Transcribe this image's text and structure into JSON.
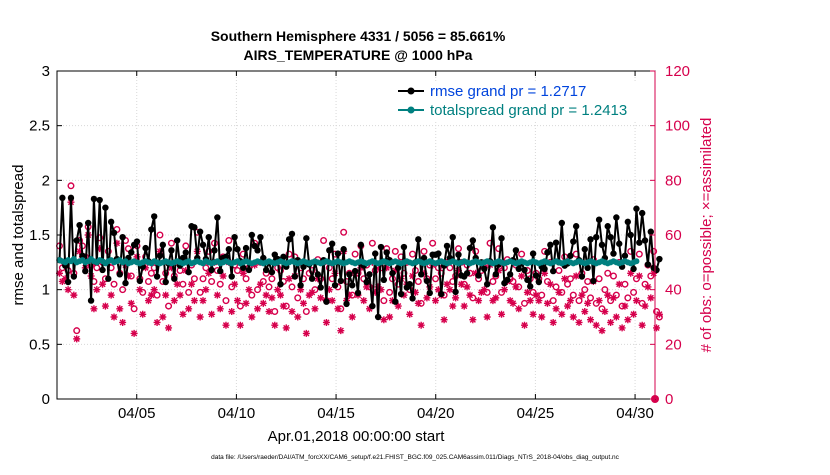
{
  "chart_data": {
    "type": "line",
    "title": "Southern Hemisphere 4331 / 5056 = 85.661%",
    "subtitle": "AIRS_TEMPERATURE @ 1000 hPa",
    "xlabel": "Apr.01,2018 00:00:00 start",
    "ylabel_left": "rmse and totalspread",
    "ylabel_right": "# of obs: o=possible; ×=assimilated",
    "footer": "data file: /Users/raeder/DAI/ATM_forcXX/CAM6_setup/f.e21.FHIST_BGC.f09_025.CAM6assim.011/Diags_NTrS_2018-04/obs_diag_output.nc",
    "x_range": [
      1.0,
      31.0
    ],
    "ylim_left": [
      0,
      3
    ],
    "ylim_right": [
      0,
      120
    ],
    "x_ticks": [
      5,
      10,
      15,
      20,
      25,
      30
    ],
    "x_tick_labels": [
      "04/05",
      "04/10",
      "04/15",
      "04/20",
      "04/25",
      "04/30"
    ],
    "y_left_ticks": [
      0,
      0.5,
      1,
      1.5,
      2,
      2.5,
      3
    ],
    "y_left_tick_labels": [
      "0",
      "0.5",
      "1",
      "1.5",
      "2",
      "2.5",
      "3"
    ],
    "y_right_ticks": [
      0,
      20,
      40,
      60,
      80,
      100,
      120
    ],
    "y_right_tick_labels": [
      "0",
      "20",
      "40",
      "60",
      "80",
      "100",
      "120"
    ],
    "legend_position": "top-right",
    "colors": {
      "rmse": "#000000",
      "spread": "#008080",
      "obs": "#d6004c"
    },
    "series": [
      {
        "name": "rmse",
        "label": "rmse grand pr = 1.2717",
        "values": [
          1.27,
          1.84,
          1.22,
          1.07,
          1.84,
          1.12,
          1.45,
          1.59,
          1.31,
          1.17,
          1.61,
          0.9,
          1.83,
          1.25,
          1.82,
          1.18,
          1.75,
          1.1,
          1.62,
          1.52,
          1.28,
          1.14,
          1.48,
          1.06,
          1.29,
          1.34,
          1.41,
          1.44,
          1.08,
          1.21,
          1.38,
          1.26,
          1.55,
          1.67,
          1.12,
          1.31,
          1.41,
          1.07,
          1.24,
          1.36,
          1.1,
          1.45,
          1.22,
          1.29,
          1.34,
          1.16,
          1.58,
          1.57,
          1.29,
          1.53,
          1.41,
          1.28,
          1.48,
          1.18,
          1.36,
          1.66,
          1.17,
          1.29,
          1.3,
          1.37,
          1.12,
          1.48,
          1.37,
          1.26,
          1.2,
          1.38,
          1.18,
          1.5,
          1.4,
          1.36,
          1.48,
          1.29,
          1.18,
          1.25,
          1.16,
          1.32,
          1.28,
          1.05,
          1.3,
          1.21,
          1.46,
          1.51,
          1.12,
          1.27,
          1.04,
          1.21,
          1.47,
          1.23,
          1.1,
          1.25,
          1.14,
          1.02,
          1.27,
          0.89,
          1.36,
          1.42,
          1.04,
          1.33,
          1.08,
          1.37,
          0.87,
          1.14,
          1.04,
          1.17,
          0.97,
          1.41,
          1.22,
          1.07,
          1.14,
          0.85,
          1.33,
          0.75,
          1.39,
          1.09,
          1.34,
          1.27,
          1.15,
          0.89,
          1.2,
          0.96,
          1.39,
          1.02,
          1.05,
          0.92,
          1.25,
          1.46,
          1.14,
          1.29,
          1.08,
          0.97,
          1.32,
          1.32,
          1.33,
          0.96,
          1.22,
          1.4,
          1.29,
          1.48,
          0.98,
          1.32,
          1.13,
          1.12,
          1.15,
          1.38,
          1.45,
          1.29,
          1.13,
          1.25,
          1.19,
          1.05,
          1.26,
          1.57,
          1.14,
          1.23,
          1.47,
          1.06,
          1.09,
          1.14,
          1.27,
          1.36,
          1.19,
          1.24,
          1.18,
          1.09,
          1.03,
          1.33,
          1.13,
          1.07,
          1.21,
          1.19,
          1.34,
          1.41,
          1.17,
          1.43,
          1.25,
          1.61,
          1.22,
          1.24,
          1.31,
          1.44,
          1.58,
          1.27,
          1.12,
          1.37,
          1.2,
          1.46,
          1.08,
          1.48,
          1.64,
          1.41,
          1.29,
          1.58,
          1.48,
          1.33,
          1.66,
          1.42,
          1.21,
          1.31,
          1.62,
          1.5,
          1.19,
          1.74,
          1.43,
          1.7,
          1.45,
          1.23,
          1.53,
          1.2,
          1.18,
          1.28
        ],
        "x_start": 1.125,
        "x_step": 0.144
      },
      {
        "name": "totalspread",
        "label": "totalspread grand pr = 1.2413",
        "values": [
          1.27,
          1.26,
          1.25,
          1.27,
          1.26,
          1.28,
          1.25,
          1.26,
          1.27,
          1.25,
          1.26,
          1.28,
          1.26,
          1.25,
          1.27,
          1.26,
          1.24,
          1.26,
          1.27,
          1.25,
          1.26,
          1.27,
          1.25,
          1.26,
          1.24,
          1.25,
          1.26,
          1.25,
          1.24,
          1.25,
          1.26,
          1.25,
          1.24,
          1.26,
          1.25,
          1.24,
          1.25,
          1.26,
          1.25,
          1.24,
          1.25,
          1.26,
          1.25,
          1.24,
          1.25,
          1.26,
          1.24,
          1.25,
          1.26,
          1.25,
          1.24,
          1.26,
          1.25,
          1.24,
          1.25,
          1.26,
          1.24,
          1.25,
          1.26,
          1.25,
          1.24,
          1.25,
          1.26,
          1.24,
          1.25,
          1.26,
          1.25,
          1.24,
          1.25,
          1.26,
          1.25,
          1.24,
          1.25,
          1.26,
          1.25,
          1.24,
          1.25,
          1.26,
          1.25,
          1.24,
          1.25,
          1.26,
          1.25,
          1.24,
          1.25,
          1.26,
          1.25,
          1.24,
          1.25,
          1.26,
          1.25,
          1.24,
          1.25,
          1.26,
          1.25,
          1.24,
          1.25,
          1.26,
          1.25,
          1.24,
          1.25,
          1.26,
          1.25,
          1.24,
          1.25,
          1.26,
          1.25,
          1.24,
          1.25,
          1.26,
          1.25,
          1.24,
          1.25,
          1.26,
          1.25,
          1.24,
          1.25,
          1.26,
          1.25,
          1.24,
          1.25,
          1.26,
          1.25,
          1.24,
          1.25,
          1.26,
          1.25,
          1.24,
          1.25,
          1.26,
          1.25,
          1.24,
          1.25,
          1.26,
          1.25,
          1.24,
          1.25,
          1.26,
          1.25,
          1.24,
          1.25,
          1.26,
          1.25,
          1.24,
          1.25,
          1.26,
          1.25,
          1.24,
          1.25,
          1.26,
          1.25,
          1.24,
          1.25,
          1.26,
          1.25,
          1.24,
          1.25,
          1.26,
          1.25,
          1.24,
          1.25,
          1.26,
          1.25,
          1.24,
          1.25,
          1.26,
          1.25,
          1.24,
          1.25,
          1.26,
          1.25,
          1.24,
          1.25,
          1.26,
          1.25,
          1.24,
          1.25,
          1.26,
          1.25,
          1.24,
          1.25,
          1.26,
          1.25,
          1.24,
          1.25,
          1.26,
          1.25,
          1.24,
          1.25,
          1.26,
          1.25,
          1.24,
          1.25,
          1.26,
          1.25,
          1.24,
          1.25,
          1.26,
          1.25,
          1.24,
          1.25,
          1.26
        ],
        "x_start": 1.125,
        "x_step": 0.144
      },
      {
        "name": "obs_possible",
        "label": "possible",
        "values": [
          56,
          48,
          50,
          47,
          78,
          46,
          25,
          58,
          56,
          52,
          63,
          49,
          43,
          48,
          59,
          50,
          44,
          54,
          48,
          42,
          62,
          46,
          40,
          58,
          55,
          45,
          33,
          56,
          44,
          39,
          52,
          43,
          46,
          48,
          38,
          60,
          43,
          46,
          34,
          57,
          45,
          50,
          47,
          42,
          56,
          39,
          49,
          44,
          61,
          39,
          44,
          48,
          54,
          43,
          57,
          47,
          42,
          52,
          36,
          58,
          41,
          49,
          47,
          34,
          53,
          44,
          48,
          38,
          57,
          40,
          50,
          43,
          46,
          41,
          44,
          32,
          48,
          47,
          43,
          34,
          53,
          41,
          52,
          37,
          48,
          44,
          32,
          46,
          47,
          40,
          51,
          44,
          58,
          36,
          48,
          44,
          53,
          41,
          33,
          61,
          43,
          46,
          38,
          53,
          46,
          56,
          44,
          49,
          41,
          57,
          47,
          49,
          48,
          36,
          55,
          39,
          44,
          54,
          42,
          52,
          46,
          50,
          40,
          53,
          47,
          43,
          35,
          54,
          44,
          49,
          57,
          44,
          48,
          46,
          38,
          50,
          48,
          43,
          45,
          55,
          50,
          42,
          49,
          46,
          37,
          54,
          44,
          47,
          48,
          39,
          57,
          43,
          45,
          55,
          39,
          48,
          51,
          44,
          43,
          49,
          41,
          53,
          35,
          47,
          44,
          39,
          46,
          44,
          38,
          54,
          43,
          50,
          36,
          41,
          47,
          39,
          52,
          42,
          44,
          38,
          53,
          36,
          46,
          40,
          43,
          37,
          51,
          35,
          44,
          33,
          40,
          46,
          36,
          45,
          38,
          50,
          34,
          42,
          37,
          54,
          39,
          44,
          53,
          35,
          42,
          49,
          45,
          54,
          32,
          30
        ],
        "x_start": 1.125,
        "x_step": 0.144
      },
      {
        "name": "obs_assimilated",
        "label": "assimilated",
        "values": [
          46,
          43,
          44,
          40,
          72,
          38,
          22,
          54,
          52,
          48,
          60,
          45,
          33,
          40,
          55,
          42,
          34,
          50,
          38,
          30,
          57,
          33,
          28,
          49,
          45,
          35,
          24,
          52,
          40,
          31,
          48,
          36,
          38,
          40,
          28,
          54,
          30,
          38,
          26,
          48,
          36,
          42,
          38,
          31,
          47,
          33,
          42,
          36,
          54,
          30,
          36,
          40,
          46,
          31,
          50,
          38,
          33,
          45,
          27,
          50,
          32,
          42,
          36,
          27,
          46,
          35,
          40,
          30,
          49,
          33,
          42,
          35,
          38,
          32,
          37,
          27,
          40,
          38,
          34,
          26,
          44,
          32,
          45,
          30,
          40,
          35,
          24,
          38,
          39,
          33,
          44,
          37,
          50,
          28,
          40,
          36,
          46,
          33,
          25,
          54,
          36,
          38,
          30,
          46,
          38,
          48,
          36,
          41,
          33,
          50,
          39,
          41,
          40,
          29,
          48,
          30,
          36,
          47,
          34,
          44,
          38,
          42,
          31,
          45,
          39,
          35,
          27,
          46,
          37,
          41,
          49,
          36,
          40,
          38,
          29,
          42,
          40,
          34,
          37,
          47,
          42,
          34,
          41,
          38,
          29,
          46,
          36,
          39,
          40,
          30,
          49,
          36,
          37,
          47,
          31,
          40,
          43,
          36,
          35,
          41,
          33,
          45,
          27,
          39,
          36,
          31,
          38,
          36,
          30,
          46,
          35,
          42,
          28,
          33,
          39,
          31,
          44,
          34,
          36,
          30,
          45,
          28,
          38,
          32,
          35,
          29,
          43,
          27,
          36,
          25,
          32,
          38,
          28,
          37,
          30,
          42,
          26,
          34,
          29,
          46,
          31,
          36,
          45,
          27,
          34,
          41,
          37,
          46,
          26,
          31
        ],
        "x_start": 1.125,
        "x_step": 0.144
      }
    ]
  }
}
